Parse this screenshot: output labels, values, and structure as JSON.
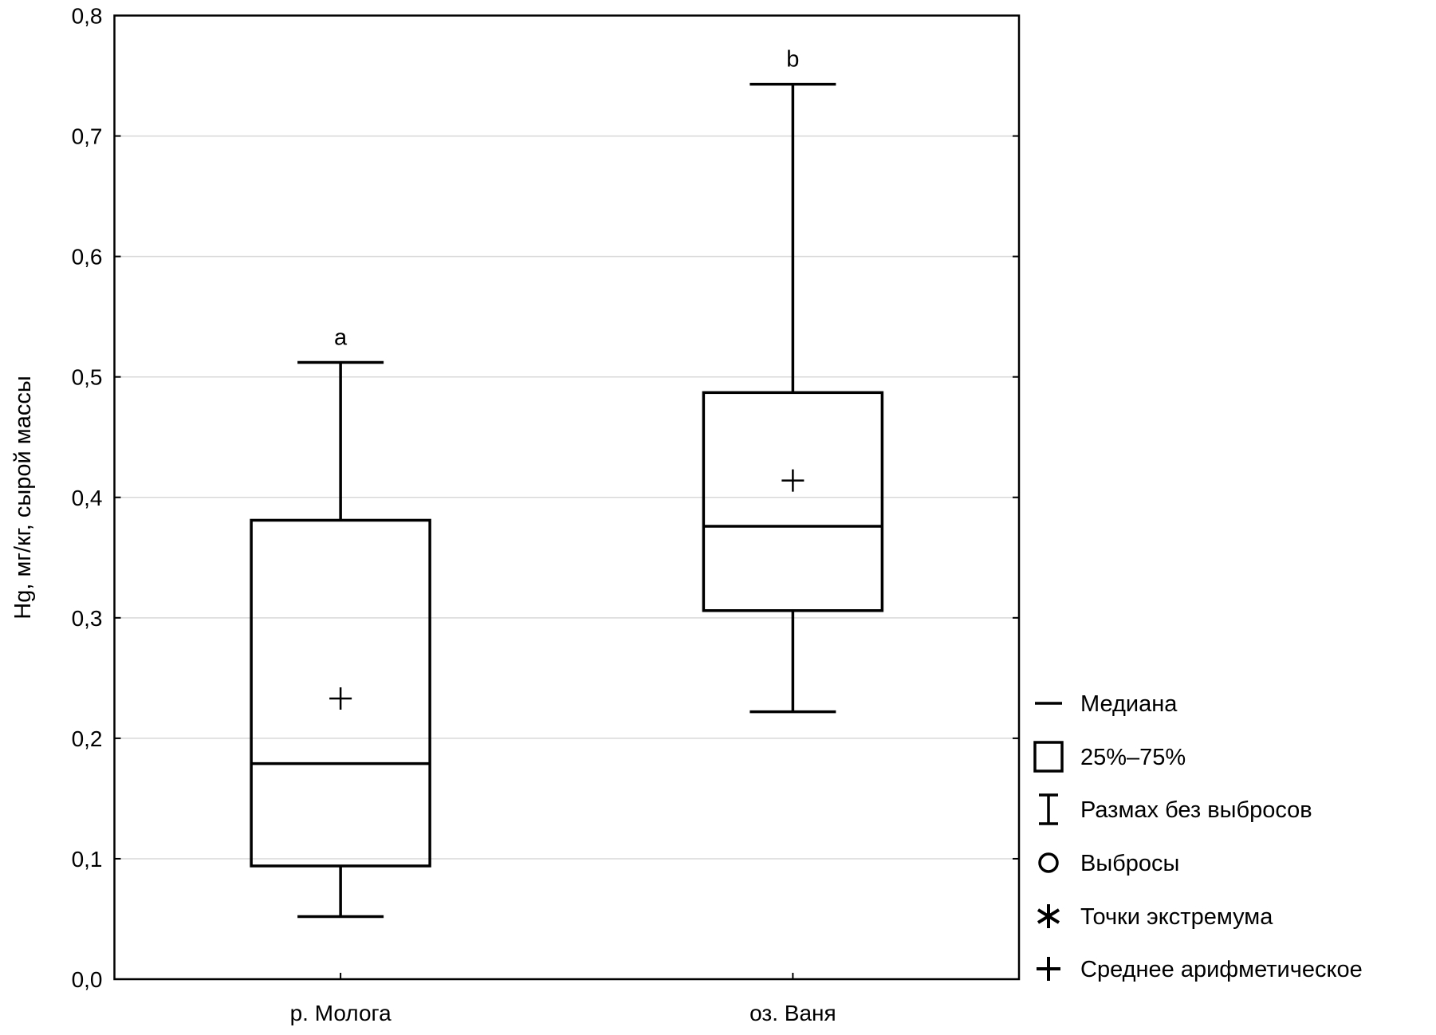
{
  "chart_data": {
    "type": "boxplot",
    "title": "",
    "xlabel": "",
    "ylabel": "Hg, мг/кг, сырой массы",
    "ylim": [
      0,
      0.8
    ],
    "yticks": [
      "0,0",
      "0,1",
      "0,2",
      "0,3",
      "0,4",
      "0,5",
      "0,6",
      "0,7",
      "0,8"
    ],
    "grid": true,
    "categories": [
      "р. Молога",
      "оз. Ваня"
    ],
    "series": [
      {
        "name": "р. Молога",
        "min": 0.052,
        "q1": 0.094,
        "median": 0.179,
        "q3": 0.381,
        "max": 0.512,
        "mean": 0.233,
        "group_label": "a"
      },
      {
        "name": "оз. Ваня",
        "min": 0.222,
        "q1": 0.306,
        "median": 0.376,
        "q3": 0.487,
        "max": 0.743,
        "mean": 0.414,
        "group_label": "b"
      }
    ],
    "legend": {
      "placement": "right",
      "items": [
        {
          "symbol": "median-line",
          "label": "Медиана"
        },
        {
          "symbol": "box",
          "label": "25%–75%"
        },
        {
          "symbol": "whisker",
          "label": "Размах без выбросов"
        },
        {
          "symbol": "circle",
          "label": "Выбросы"
        },
        {
          "symbol": "asterisk",
          "label": "Точки экстремума"
        },
        {
          "symbol": "plus",
          "label": "Среднее арифметическое"
        }
      ]
    }
  }
}
